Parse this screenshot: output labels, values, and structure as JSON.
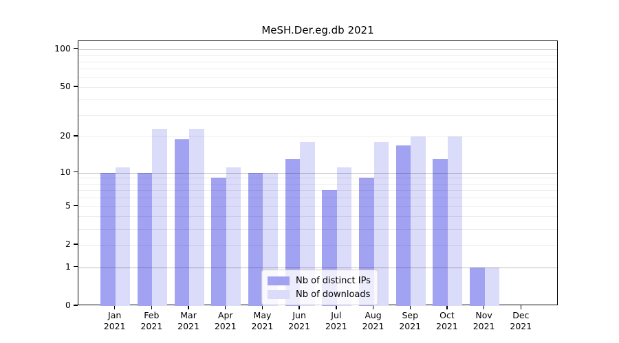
{
  "chart_data": {
    "type": "bar",
    "title": "MeSH.Der.eg.db 2021",
    "categories": [
      "Jan",
      "Feb",
      "Mar",
      "Apr",
      "May",
      "Jun",
      "Jul",
      "Aug",
      "Sep",
      "Oct",
      "Nov",
      "Dec"
    ],
    "year_label": "2021",
    "series": [
      {
        "name": "Nb of distinct IPs",
        "color": "#a2a2f2",
        "values": [
          10,
          10,
          19,
          9,
          10,
          13,
          7,
          9,
          17,
          13,
          1,
          0
        ]
      },
      {
        "name": "Nb of downloads",
        "color": "#dbdbfa",
        "values": [
          11,
          23,
          23,
          11,
          10,
          18,
          11,
          18,
          20,
          20,
          1,
          0
        ]
      }
    ],
    "xlabel": "",
    "ylabel": "",
    "yscale": "log1p",
    "ylim": [
      0,
      115.7
    ],
    "yticks": [
      0,
      1,
      2,
      5,
      10,
      20,
      50,
      100
    ],
    "grid": {
      "on": true,
      "minor_values": [
        2,
        3,
        4,
        5,
        6,
        7,
        8,
        9,
        20,
        30,
        40,
        50,
        60,
        70,
        80,
        90
      ],
      "major_values": [
        1,
        10,
        100
      ]
    },
    "legend_position": "lower-center",
    "colors": {
      "axis": "#000000",
      "background": "#ffffff"
    }
  }
}
